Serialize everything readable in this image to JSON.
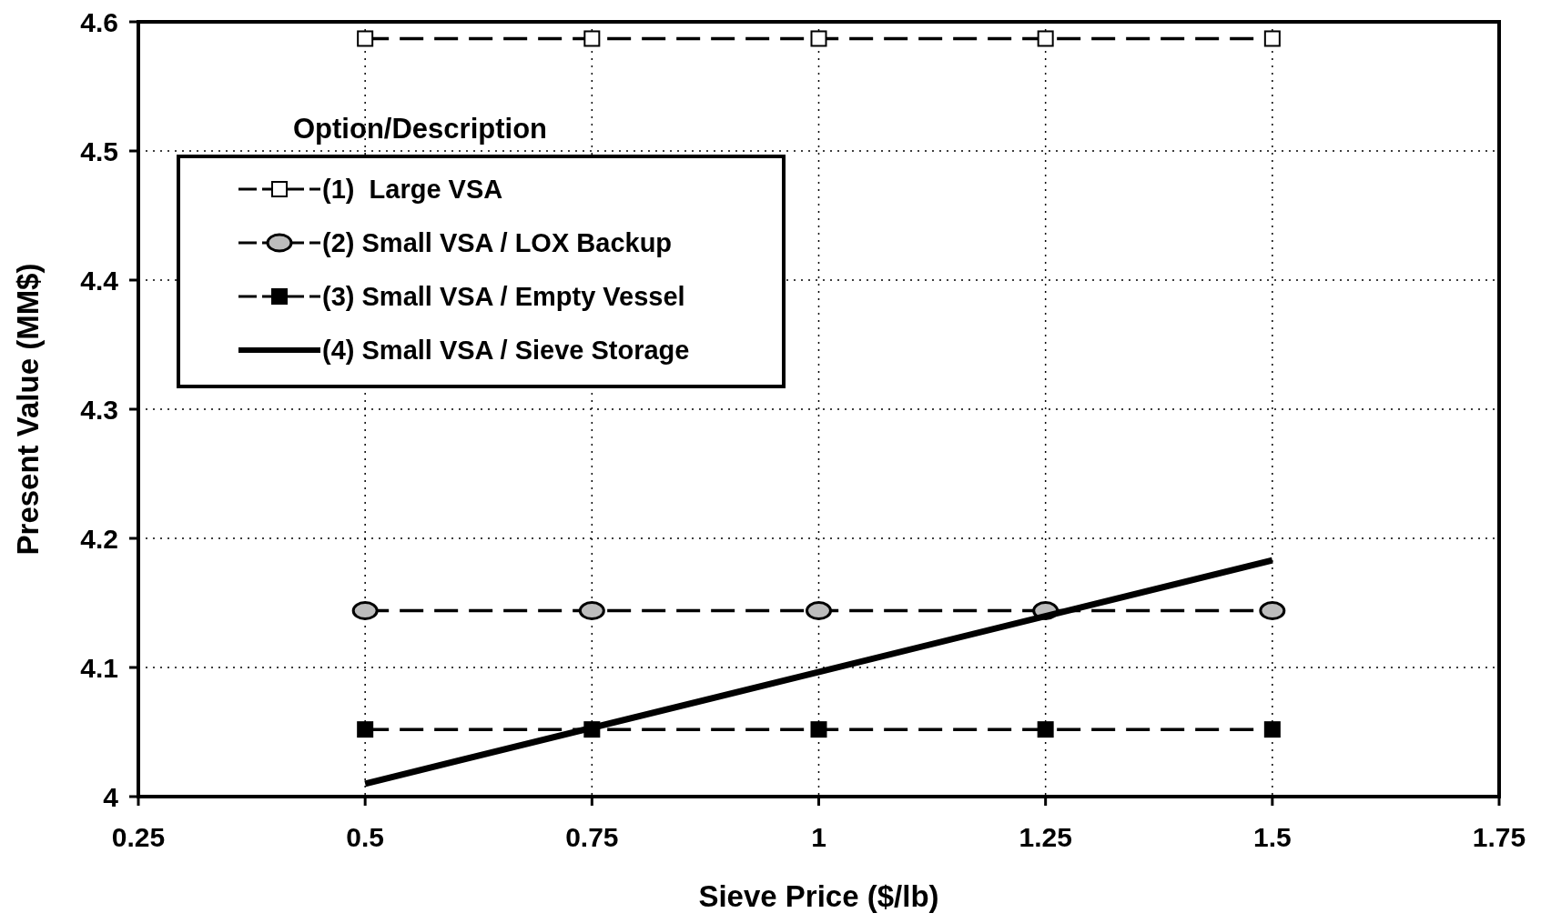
{
  "chart_data": {
    "type": "line",
    "xlabel": "Sieve Price ($/lb)",
    "ylabel": "Present Value (MM$)",
    "legend_title": "Option/Description",
    "x": [
      0.5,
      0.75,
      1,
      1.25,
      1.5
    ],
    "series": [
      {
        "name": "(1)  Large VSA",
        "color": "#000000",
        "values": [
          4.587,
          4.587,
          4.587,
          4.587,
          4.587
        ],
        "marker": "square",
        "line_style": "dashed"
      },
      {
        "name": "(2) Small VSA / LOX Backup",
        "color": "#000000",
        "values": [
          4.144,
          4.144,
          4.144,
          4.144,
          4.144
        ],
        "marker": "circle",
        "line_style": "dashed"
      },
      {
        "name": "(3) Small VSA / Empty Vessel",
        "color": "#000000",
        "values": [
          4.052,
          4.052,
          4.052,
          4.052,
          4.052
        ],
        "marker": "square",
        "line_style": "dashed"
      },
      {
        "name": "(4) Small VSA / Sieve Storage",
        "color": "#000000",
        "x": [
          0.5,
          1.5
        ],
        "values": [
          4.01,
          4.183
        ],
        "marker": "none",
        "line_style": "solid"
      }
    ],
    "xlim": [
      0.25,
      1.75
    ],
    "xticks": [
      0.25,
      0.5,
      0.75,
      1,
      1.25,
      1.5,
      1.75
    ],
    "ylim": [
      4,
      4.6
    ],
    "yticks": [
      4,
      4.1,
      4.2,
      4.3,
      4.4,
      4.5,
      4.6
    ],
    "grid": true,
    "legend": "top left"
  }
}
